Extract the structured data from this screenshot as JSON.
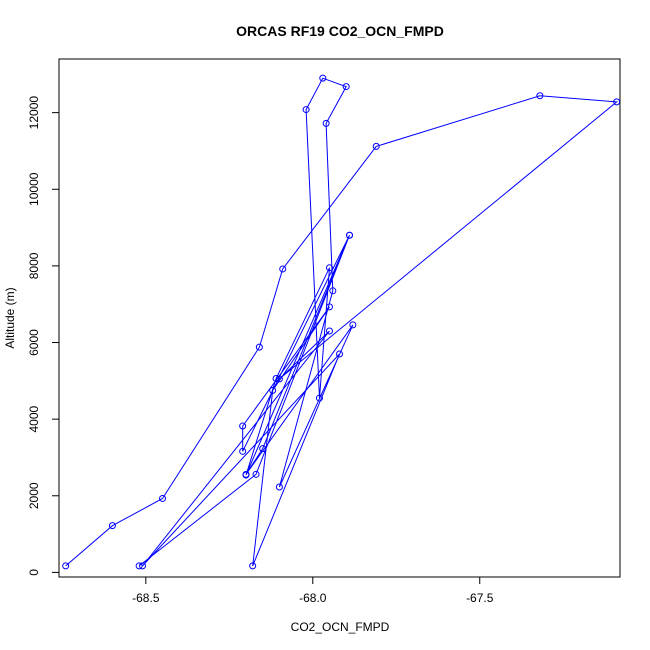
{
  "chart_data": {
    "type": "line",
    "title": "ORCAS RF19 CO2_OCN_FMPD",
    "xlabel": "CO2_OCN_FMPD",
    "ylabel": "Altitude (m)",
    "xlim": [
      -68.76,
      -67.08
    ],
    "ylim": [
      -120,
      13400
    ],
    "x_ticks": [
      -68.5,
      -68.0,
      -67.5
    ],
    "x_tick_labels": [
      "-68.5",
      "-68.0",
      "-67.5"
    ],
    "y_ticks": [
      0,
      2000,
      4000,
      6000,
      8000,
      10000,
      12000
    ],
    "y_tick_labels": [
      "0",
      "2000",
      "4000",
      "6000",
      "8000",
      "10000",
      "12000"
    ],
    "grid": false,
    "legend": "none",
    "series": [
      {
        "color": "#0000ff",
        "marker": "open-circle",
        "points": [
          [
            -68.74,
            170
          ],
          [
            -68.6,
            1220
          ],
          [
            -68.45,
            1930
          ],
          [
            -68.16,
            5880
          ],
          [
            -68.09,
            7920
          ],
          [
            -67.81,
            11120
          ],
          [
            -67.32,
            12440
          ],
          [
            -67.09,
            12280
          ],
          [
            -68.1,
            5050
          ],
          [
            -67.95,
            6300
          ],
          [
            -68.51,
            170
          ],
          [
            -67.92,
            5700
          ],
          [
            -68.18,
            170
          ],
          [
            -68.12,
            4750
          ],
          [
            -67.95,
            6930
          ],
          [
            -68.21,
            3820
          ],
          [
            -68.21,
            3160
          ],
          [
            -67.89,
            8800
          ],
          [
            -68.2,
            2540
          ],
          [
            -68.11,
            5060
          ],
          [
            -67.95,
            7950
          ],
          [
            -67.98,
            4550
          ],
          [
            -68.02,
            12080
          ],
          [
            -67.97,
            12900
          ],
          [
            -67.9,
            12680
          ],
          [
            -67.96,
            11720
          ],
          [
            -67.94,
            7350
          ],
          [
            -68.1,
            2230
          ],
          [
            -67.88,
            6460
          ],
          [
            -68.2,
            2560
          ],
          [
            -68.15,
            3230
          ],
          [
            -67.89,
            8800
          ],
          [
            -68.17,
            2560
          ],
          [
            -68.52,
            170
          ]
        ]
      }
    ]
  }
}
